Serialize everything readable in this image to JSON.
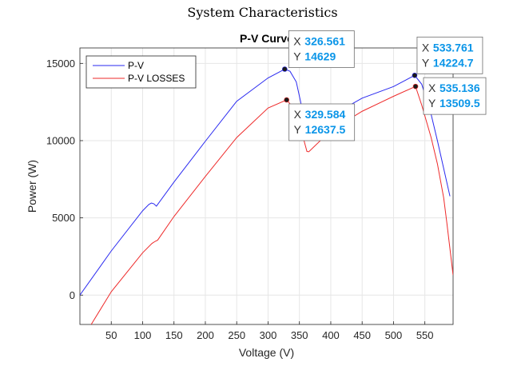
{
  "figure": {
    "title": "System Characteristics"
  },
  "chart_data": {
    "type": "line",
    "title": "P-V Curve",
    "xlabel": "Voltage (V)",
    "ylabel": "Power (W)",
    "xlim": [
      0,
      595
    ],
    "ylim": [
      -1900,
      16000
    ],
    "xticks": [
      50,
      100,
      150,
      200,
      250,
      300,
      350,
      400,
      450,
      500,
      550
    ],
    "yticks": [
      0,
      5000,
      10000,
      15000
    ],
    "grid": true,
    "legend": "top-left",
    "series": [
      {
        "name": "P-V",
        "color": "#2a2af0",
        "x": [
          0,
          50,
          100,
          110,
          114,
          118,
          122,
          150,
          200,
          250,
          300,
          326.561,
          335,
          345,
          352,
          357,
          362,
          365,
          400,
          450,
          500,
          533.761,
          545,
          560,
          570,
          580,
          590
        ],
        "y": [
          0,
          2860,
          5460,
          5870,
          5960,
          5910,
          5760,
          7320,
          9960,
          12550,
          14060,
          14629,
          14490,
          13800,
          12500,
          11300,
          10400,
          10150,
          11600,
          12750,
          13500,
          14224.7,
          13650,
          11700,
          10000,
          8200,
          6400
        ]
      },
      {
        "name": "P-V LOSSES",
        "color": "#ee2a2a",
        "x": [
          18,
          50,
          100,
          115,
          120,
          124,
          150,
          200,
          250,
          300,
          329.584,
          340,
          350,
          358,
          362,
          365,
          400,
          450,
          500,
          535.136,
          545,
          560,
          570,
          580,
          585,
          590,
          595
        ],
        "y": [
          -1900,
          220,
          2740,
          3350,
          3480,
          3560,
          5090,
          7680,
          10200,
          12110,
          12637.5,
          12150,
          11100,
          9900,
          9300,
          9280,
          10650,
          11900,
          12870,
          13509.5,
          12300,
          10200,
          8500,
          6300,
          4700,
          3000,
          1300
        ]
      }
    ],
    "datatips": [
      {
        "series": "P-V",
        "x": "326.561",
        "y": "14629"
      },
      {
        "series": "P-V LOSSES",
        "x": "329.584",
        "y": "12637.5"
      },
      {
        "series": "P-V",
        "x": "533.761",
        "y": "14224.7"
      },
      {
        "series": "P-V LOSSES",
        "x": "535.136",
        "y": "13509.5"
      }
    ]
  },
  "datatip_labels": {
    "x_key": "X",
    "y_key": "Y"
  }
}
